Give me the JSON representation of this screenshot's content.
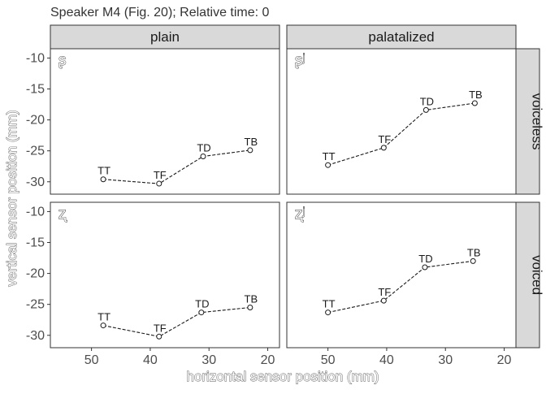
{
  "title": "Speaker M4 (Fig. 20); Relative time: 0",
  "chart_data": {
    "type": "line",
    "title": "Speaker M4 (Fig. 20); Relative time: 0",
    "xlabel": "horizontal sensor position (mm)",
    "ylabel": "vertical sensor position (mm)",
    "x_reversed": true,
    "xlim": [
      57,
      18
    ],
    "ylim": [
      -32,
      -8.5
    ],
    "x_ticks": [
      50,
      40,
      30,
      20
    ],
    "y_ticks": [
      -10,
      -15,
      -20,
      -25,
      -30
    ],
    "column_strips": [
      "plain",
      "palatalized"
    ],
    "row_strips": [
      "voiceless",
      "voiced"
    ],
    "grid": false,
    "line_style": "dashed",
    "panels": [
      {
        "id": "plain-voiceless",
        "column": "plain",
        "row": "voiceless",
        "phoneme": "ʂ",
        "points": [
          {
            "label": "TT",
            "x": 48,
            "y": -29.6
          },
          {
            "label": "TF",
            "x": 38.5,
            "y": -30.3
          },
          {
            "label": "TD",
            "x": 31,
            "y": -25.9
          },
          {
            "label": "TB",
            "x": 23,
            "y": -24.9
          }
        ]
      },
      {
        "id": "palatalized-voiceless",
        "column": "palatalized",
        "row": "voiceless",
        "phoneme": "ʂʲ",
        "points": [
          {
            "label": "TT",
            "x": 50,
            "y": -27.3
          },
          {
            "label": "TF",
            "x": 40.5,
            "y": -24.5
          },
          {
            "label": "TD",
            "x": 33.3,
            "y": -18.4
          },
          {
            "label": "TB",
            "x": 25,
            "y": -17.3
          }
        ]
      },
      {
        "id": "plain-voiced",
        "column": "plain",
        "row": "voiced",
        "phoneme": "ʐ",
        "points": [
          {
            "label": "TT",
            "x": 48,
            "y": -28.4
          },
          {
            "label": "TF",
            "x": 38.5,
            "y": -30.2
          },
          {
            "label": "TD",
            "x": 31.3,
            "y": -26.3
          },
          {
            "label": "TB",
            "x": 23,
            "y": -25.5
          }
        ]
      },
      {
        "id": "palatalized-voiced",
        "column": "palatalized",
        "row": "voiced",
        "phoneme": "ʐʲ",
        "points": [
          {
            "label": "TT",
            "x": 50,
            "y": -26.3
          },
          {
            "label": "TF",
            "x": 40.5,
            "y": -24.4
          },
          {
            "label": "TD",
            "x": 33.5,
            "y": -19
          },
          {
            "label": "TB",
            "x": 25.3,
            "y": -18
          }
        ]
      }
    ]
  },
  "colors": {
    "strip_fill": "#d9d9d9",
    "strip_border": "#333333",
    "panel_border": "#333333",
    "line": "#1a1a1a",
    "point_fill": "#ffffff",
    "text": "#1a1a1a"
  }
}
